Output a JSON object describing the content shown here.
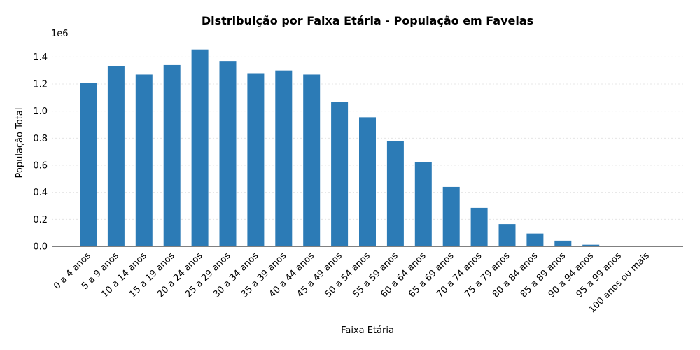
{
  "chart_data": {
    "type": "bar",
    "title": "Distribuição por Faixa Etária - População em Favelas",
    "xlabel": "Faixa Etária",
    "ylabel": "População Total",
    "y_multiplier_label": "1e6",
    "ylim": [
      0,
      1.5
    ],
    "yticks": [
      0.0,
      0.2,
      0.4,
      0.6,
      0.8,
      1.0,
      1.2,
      1.4
    ],
    "ytick_labels": [
      "0.0",
      "0.2",
      "0.4",
      "0.6",
      "0.8",
      "1.0",
      "1.2",
      "1.4"
    ],
    "grid": true,
    "bar_color": "#2c7bb6",
    "categories": [
      "0 a 4 anos",
      "5 a 9 anos",
      "10 a 14 anos",
      "15 a 19 anos",
      "20 a 24 anos",
      "25 a 29 anos",
      "30 a 34 anos",
      "35 a 39 anos",
      "40 a 44 anos",
      "45 a 49 anos",
      "50 a 54 anos",
      "55 a 59 anos",
      "60 a 64 anos",
      "65 a 69 anos",
      "70 a 74 anos",
      "75 a 79 anos",
      "80 a 84 anos",
      "85 a 89 anos",
      "90 a 94 anos",
      "95 a 99 anos",
      "100 anos ou mais"
    ],
    "values": [
      1.21,
      1.33,
      1.27,
      1.34,
      1.455,
      1.37,
      1.275,
      1.3,
      1.27,
      1.07,
      0.955,
      0.78,
      0.625,
      0.44,
      0.285,
      0.165,
      0.095,
      0.042,
      0.012,
      0.003,
      0.0005
    ]
  }
}
